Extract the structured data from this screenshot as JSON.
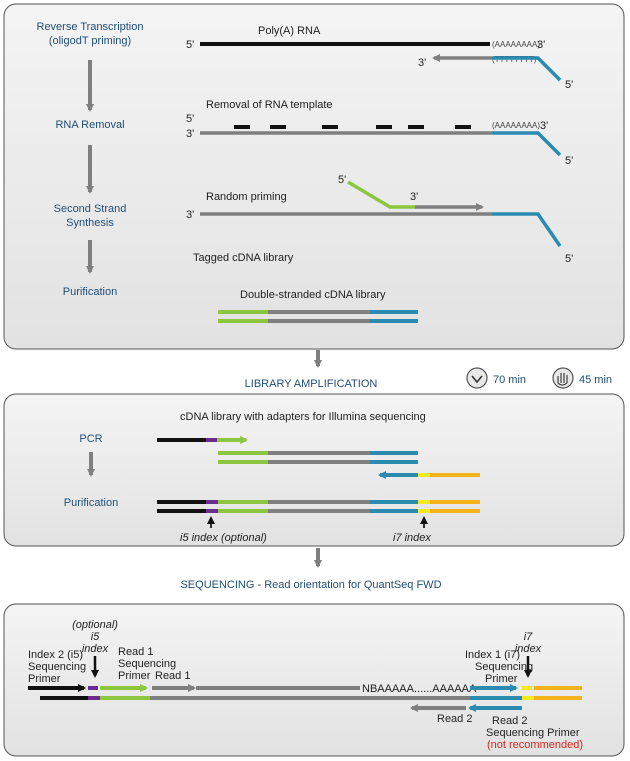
{
  "colors": {
    "black": "#111111",
    "grey": "#7f7f7f",
    "green": "#8cc63f",
    "blue": "#2a8ab0",
    "purple": "#6a2c91",
    "yellow": "#f4ea1f",
    "orange": "#f7b219",
    "title": "#1f4e79",
    "red": "#d9261c"
  },
  "panel1": {
    "steps": [
      "Reverse Transcription",
      "(oligodT priming)",
      "RNA Removal",
      "Second Strand",
      "Synthesis",
      "Purification"
    ],
    "labels": {
      "polya": "Poly(A) RNA",
      "removal": "Removal of RNA template",
      "random": "Random priming",
      "tagged": "Tagged cDNA library",
      "ds": "Double-stranded cDNA library"
    },
    "polyA": "(AAAAAAAA)",
    "polyT": "(TTTTTTTT)",
    "p5": "5'",
    "p3": "3'"
  },
  "amp": {
    "title": "LIBRARY AMPLIFICATION",
    "time1": "70 min",
    "time2": "45 min"
  },
  "panel2": {
    "steps": [
      "PCR",
      "Purification"
    ],
    "header": "cDNA library with adapters for Illumina sequencing",
    "i5": "i5 index (optional)",
    "i7": "i7 index"
  },
  "seq": {
    "title": "SEQUENCING - Read orientation for QuantSeq FWD"
  },
  "panel3": {
    "optional": "(optional)",
    "i5": "i5",
    "index": "index",
    "i7": "i7",
    "idx2": [
      "Index 2 (i5)",
      "Sequencing",
      "Primer"
    ],
    "read1p": [
      "Read 1",
      "Sequencing",
      "Primer"
    ],
    "read1": "Read 1",
    "seqtext": "NBAAAAA......AAAAAA",
    "idx1": [
      "Index 1 (i7)",
      "Sequencing",
      "Primer"
    ],
    "read2": "Read 2",
    "read2p": "Read 2",
    "seqprimer": "Sequencing Primer",
    "notrec": "(not recommended)"
  }
}
